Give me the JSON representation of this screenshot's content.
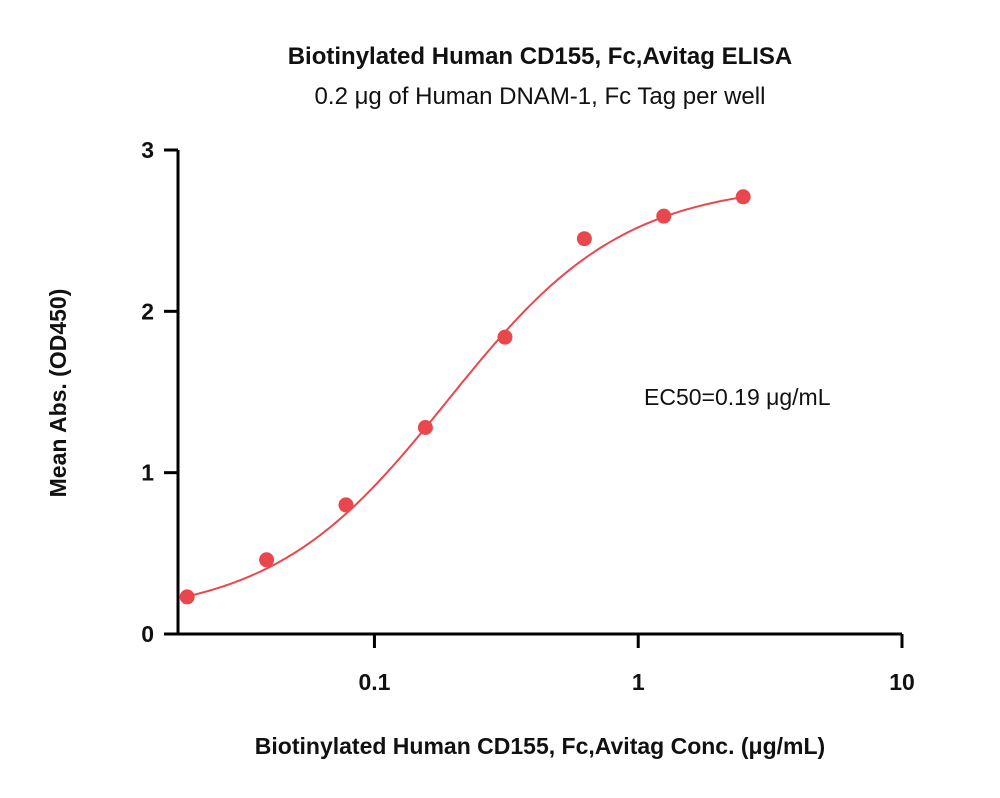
{
  "chart_data": {
    "type": "scatter",
    "title": "Biotinylated Human CD155, Fc,Avitag ELISA",
    "subtitle": "0.2 μg of Human DNAM-1, Fc Tag per well",
    "xlabel": "Biotinylated Human CD155, Fc,Avitag Conc. (μg/mL)",
    "ylabel": "Mean Abs. (OD450)",
    "x_scale": "log",
    "xlim": [
      0.018,
      10
    ],
    "ylim": [
      0,
      3
    ],
    "x_ticks": [
      {
        "value": 0.1,
        "label": "0.1"
      },
      {
        "value": 1,
        "label": "1"
      },
      {
        "value": 10,
        "label": "10"
      }
    ],
    "y_ticks": [
      {
        "value": 0,
        "label": "0"
      },
      {
        "value": 1,
        "label": "1"
      },
      {
        "value": 2,
        "label": "2"
      },
      {
        "value": 3,
        "label": "3"
      }
    ],
    "grid": false,
    "series": [
      {
        "color": "#e8484d",
        "x": [
          0.0195,
          0.039,
          0.078,
          0.156,
          0.3125,
          0.625,
          1.25,
          2.5
        ],
        "y": [
          0.23,
          0.46,
          0.8,
          1.28,
          1.84,
          2.45,
          2.59,
          2.71
        ]
      }
    ],
    "fit": {
      "model": "4PL",
      "bottom": 0.1,
      "top": 2.8,
      "ec50": 0.19,
      "hill": 1.3,
      "color": "#e8484d"
    },
    "annotation": "EC50=0.19 μg/mL"
  }
}
